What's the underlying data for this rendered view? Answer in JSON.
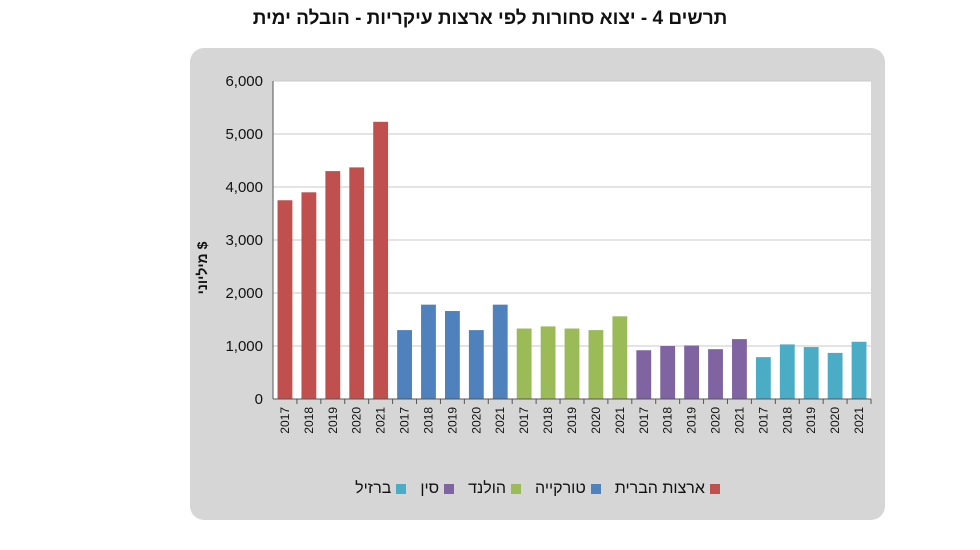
{
  "title": "תרשים 4 - יצוא סחורות לפי ארצות עיקריות - הובלה ימית",
  "chart_data": {
    "type": "bar",
    "title": "תרשים 4 - יצוא סחורות לפי ארצות עיקריות - הובלה ימית",
    "ylabel": "מיליוני $",
    "xlabel": "",
    "ylim": [
      0,
      6000
    ],
    "yticks": [
      "0",
      "1,000",
      "2,000",
      "3,000",
      "4,000",
      "5,000",
      "6,000"
    ],
    "grid": true,
    "legend_position": "bottom",
    "categories": [
      "2017",
      "2018",
      "2019",
      "2020",
      "2021"
    ],
    "series": [
      {
        "name": "ארצות הברית",
        "color": "#c0504d",
        "values": [
          3750,
          3900,
          4300,
          4370,
          5230
        ]
      },
      {
        "name": "טורקייה",
        "color": "#4f81bd",
        "values": [
          1300,
          1780,
          1660,
          1300,
          1780
        ]
      },
      {
        "name": "הולנד",
        "color": "#9bbb59",
        "values": [
          1330,
          1370,
          1330,
          1300,
          1560
        ]
      },
      {
        "name": "סין",
        "color": "#8064a2",
        "values": [
          920,
          1000,
          1010,
          940,
          1130
        ]
      },
      {
        "name": "ברזיל",
        "color": "#4bacc6",
        "values": [
          790,
          1030,
          980,
          870,
          1080
        ]
      }
    ]
  }
}
